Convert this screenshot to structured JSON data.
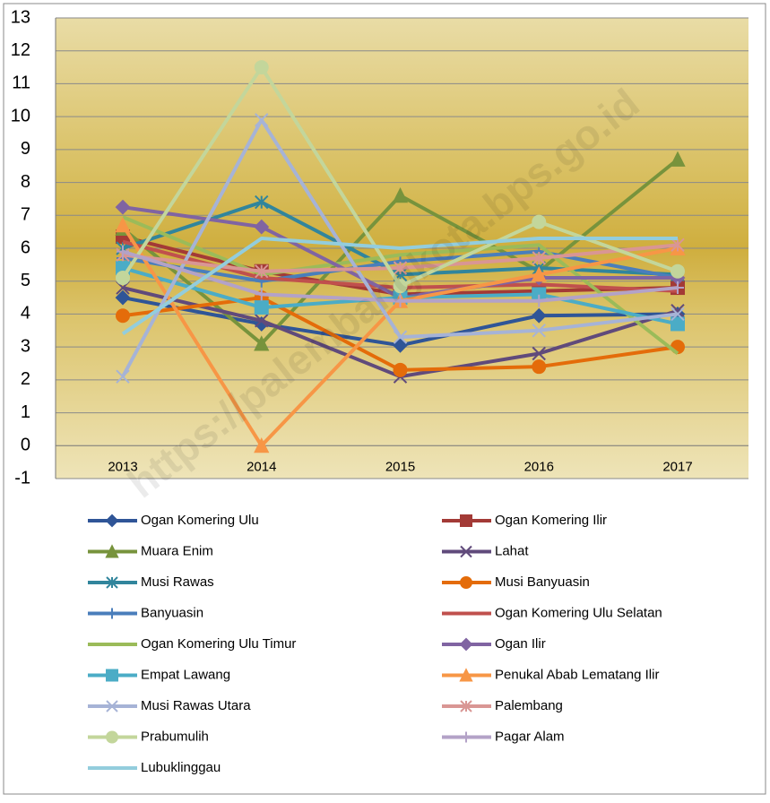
{
  "chart_data": {
    "type": "line",
    "watermark": "https://palembangkota.bps.go.id",
    "categories": [
      "2013",
      "2014",
      "2015",
      "2016",
      "2017"
    ],
    "ylim": [
      -1,
      13
    ],
    "yticks": [
      -1,
      0,
      1,
      2,
      3,
      4,
      5,
      6,
      7,
      8,
      9,
      10,
      11,
      12,
      13
    ],
    "grid": true,
    "series": [
      {
        "name": "Ogan Komering Ulu",
        "color": "#2f5597",
        "marker": "diamond",
        "values": [
          4.5,
          3.7,
          3.05,
          3.95,
          4.0
        ]
      },
      {
        "name": "Ogan Komering Ilir",
        "color": "#a33a36",
        "marker": "square",
        "values": [
          6.35,
          5.3,
          4.6,
          4.7,
          4.8
        ]
      },
      {
        "name": "Muara Enim",
        "color": "#77933c",
        "marker": "triangle",
        "values": [
          6.6,
          3.1,
          7.6,
          5.3,
          8.7
        ]
      },
      {
        "name": "Lahat",
        "color": "#604a7b",
        "marker": "x",
        "values": [
          4.8,
          3.8,
          2.1,
          2.8,
          4.1
        ]
      },
      {
        "name": "Musi Rawas",
        "color": "#31859c",
        "marker": "asterisk",
        "values": [
          6.0,
          7.4,
          5.2,
          5.4,
          5.2
        ]
      },
      {
        "name": "Musi Banyuasin",
        "color": "#e46c0a",
        "marker": "circle",
        "values": [
          3.95,
          4.5,
          2.3,
          2.4,
          3.0
        ]
      },
      {
        "name": "Banyuasin",
        "color": "#4a7ebb",
        "marker": "plus",
        "values": [
          5.7,
          5.0,
          5.6,
          5.9,
          5.1
        ]
      },
      {
        "name": "Ogan Komering Ulu Selatan",
        "color": "#c0504d",
        "marker": "none",
        "values": [
          6.2,
          5.1,
          4.8,
          4.9,
          4.7
        ]
      },
      {
        "name": "Ogan Komering Ulu Timur",
        "color": "#9bbb59",
        "marker": "none",
        "values": [
          6.95,
          5.2,
          5.8,
          6.1,
          2.8
        ]
      },
      {
        "name": "Ogan Ilir",
        "color": "#8064a2",
        "marker": "diamond",
        "values": [
          7.25,
          6.65,
          4.5,
          5.1,
          5.1
        ]
      },
      {
        "name": "Empat Lawang",
        "color": "#4bacc6",
        "marker": "square",
        "values": [
          5.4,
          4.2,
          4.5,
          4.6,
          3.7
        ]
      },
      {
        "name": "Penukal Abab Lematang Ilir",
        "color": "#f79646",
        "marker": "triangle",
        "values": [
          6.7,
          0,
          4.4,
          5.2,
          6.0
        ]
      },
      {
        "name": "Musi Rawas Utara",
        "color": "#a6b3d6",
        "marker": "x",
        "values": [
          2.1,
          9.9,
          3.3,
          3.5,
          4.0
        ]
      },
      {
        "name": "Palembang",
        "color": "#d99694",
        "marker": "asterisk",
        "values": [
          5.8,
          5.3,
          5.4,
          5.7,
          6.1
        ]
      },
      {
        "name": "Prabumulih",
        "color": "#c3d69b",
        "marker": "circle",
        "values": [
          5.1,
          11.5,
          4.85,
          6.8,
          5.3
        ]
      },
      {
        "name": "Pagar Alam",
        "color": "#b3a2c7",
        "marker": "plus",
        "values": [
          5.9,
          4.6,
          4.4,
          4.4,
          4.8
        ]
      },
      {
        "name": "Lubuklinggau",
        "color": "#93cddd",
        "marker": "none",
        "values": [
          3.4,
          6.3,
          6.0,
          6.3,
          6.3
        ]
      }
    ]
  }
}
